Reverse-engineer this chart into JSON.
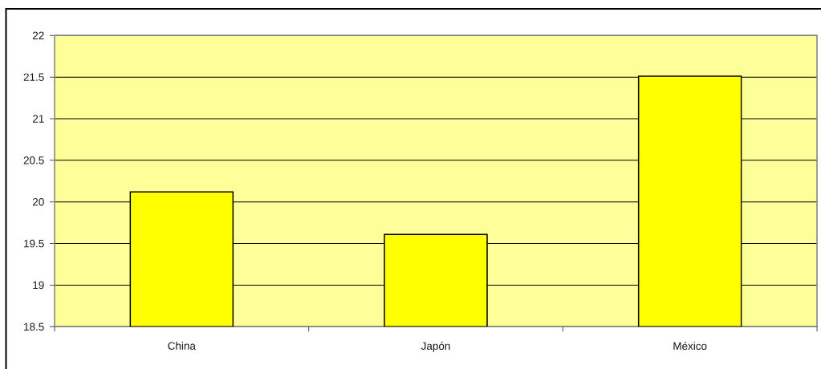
{
  "chart_data": {
    "type": "bar",
    "categories": [
      "China",
      "Japón",
      "México"
    ],
    "values": [
      20.12,
      19.61,
      21.51
    ],
    "color": "#ffff00",
    "ylim": [
      18.5,
      22
    ],
    "yticks": [
      18.5,
      19,
      19.5,
      20,
      20.5,
      21,
      21.5,
      22
    ],
    "grid": "y"
  }
}
